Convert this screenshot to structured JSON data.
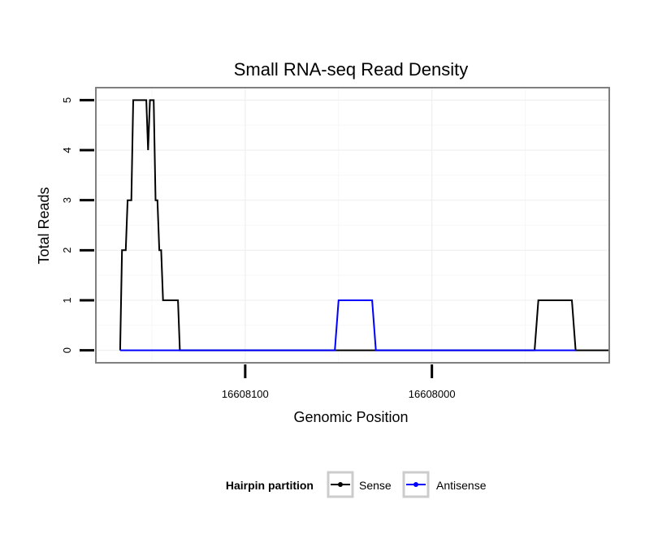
{
  "chart_data": {
    "type": "line",
    "title": "Small RNA-seq Read Density",
    "xlabel": "Genomic Position",
    "ylabel": "Total Reads",
    "x_reversed": true,
    "xlim": [
      16608180,
      16607905
    ],
    "ylim": [
      -0.25,
      5.25
    ],
    "x_ticks": [
      16608100,
      16608000
    ],
    "x_tick_labels": [
      "16608100",
      "16608000"
    ],
    "y_ticks": [
      0,
      1,
      2,
      3,
      4,
      5
    ],
    "y_tick_labels": [
      "0",
      "1",
      "2",
      "3",
      "4",
      "5"
    ],
    "grid": true,
    "legend": {
      "title": "Hairpin partition",
      "position": "bottom",
      "entries": [
        "Sense",
        "Antisense"
      ]
    },
    "series": [
      {
        "name": "Sense",
        "color": "#000000",
        "x": [
          16608167,
          16608166,
          16608164,
          16608163,
          16608161,
          16608160,
          16608158,
          16608153,
          16608152,
          16608151,
          16608149,
          16608148,
          16608147,
          16608146,
          16608145,
          16608144,
          16608143,
          16608141,
          16608136,
          16608135,
          16608125,
          16608085,
          16608065,
          16608045,
          16608035,
          16608025,
          16607985,
          16607945,
          16607943,
          16607925,
          16607923,
          16607905
        ],
        "y": [
          0,
          2,
          2,
          3,
          3,
          5,
          5,
          5,
          4,
          5,
          5,
          3,
          3,
          2,
          2,
          1,
          1,
          1,
          1,
          0,
          0,
          0,
          0,
          0,
          0,
          0,
          0,
          0,
          1,
          1,
          0,
          0
        ]
      },
      {
        "name": "Antisense",
        "color": "#0000ff",
        "x": [
          16608167,
          16608136,
          16608052,
          16608050,
          16608032,
          16608030,
          16607945,
          16607923
        ],
        "y": [
          0,
          0,
          0,
          1,
          1,
          0,
          0,
          0
        ]
      }
    ]
  }
}
